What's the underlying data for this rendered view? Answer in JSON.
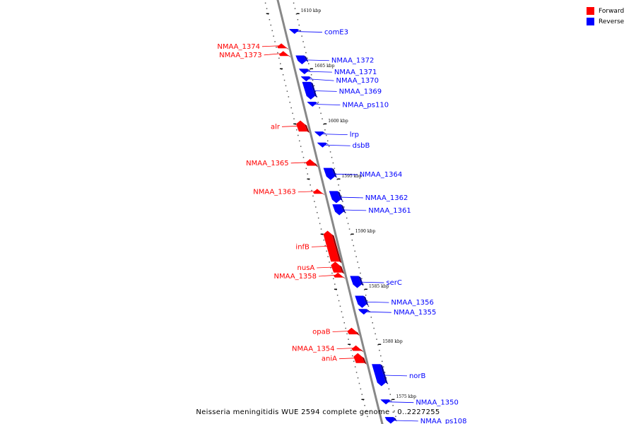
{
  "legend": [
    {
      "label": "Forward",
      "color": "#ff0000"
    },
    {
      "label": "Reverse",
      "color": "#0000ff"
    }
  ],
  "caption": "Neisseria meningitidis WUE 2594 complete genome - 0..2227255",
  "colors": {
    "forward": "#ff0000",
    "reverse": "#0000ff",
    "axis": "#888888"
  },
  "axis": {
    "units": "kbp",
    "start_kbp": 1612,
    "end_kbp": 1572
  },
  "ticks": [
    {
      "kbp": 1610,
      "label": "1610 kbp"
    },
    {
      "kbp": 1605,
      "label": "1605 kbp"
    },
    {
      "kbp": 1600,
      "label": "1600 kbp"
    },
    {
      "kbp": 1595,
      "label": "1595 kbp"
    },
    {
      "kbp": 1590,
      "label": "1590 kbp"
    },
    {
      "kbp": 1585,
      "label": "1585 kbp"
    },
    {
      "kbp": 1580,
      "label": "1580 kbp"
    },
    {
      "kbp": 1575,
      "label": "1575 kbp"
    }
  ],
  "genes": [
    {
      "name": "comE3",
      "strand": "reverse",
      "from_kbp": 1608.6,
      "to_kbp": 1608.3
    },
    {
      "name": "NMAA_1374",
      "strand": "forward",
      "from_kbp": 1607.3,
      "to_kbp": 1606.9
    },
    {
      "name": "NMAA_1373",
      "strand": "forward",
      "from_kbp": 1606.6,
      "to_kbp": 1606.2
    },
    {
      "name": "NMAA_1372",
      "strand": "reverse",
      "from_kbp": 1606.2,
      "to_kbp": 1605.4
    },
    {
      "name": "NMAA_1371",
      "strand": "reverse",
      "from_kbp": 1605.0,
      "to_kbp": 1604.5
    },
    {
      "name": "NMAA_1370",
      "strand": "reverse",
      "from_kbp": 1604.3,
      "to_kbp": 1603.9
    },
    {
      "name": "NMAA_1369",
      "strand": "reverse",
      "from_kbp": 1603.8,
      "to_kbp": 1602.2
    },
    {
      "name": "NMAA_ps110",
      "strand": "reverse",
      "from_kbp": 1602.0,
      "to_kbp": 1601.6
    },
    {
      "name": "alr",
      "strand": "forward",
      "from_kbp": 1600.3,
      "to_kbp": 1599.3
    },
    {
      "name": "lrp",
      "strand": "reverse",
      "from_kbp": 1599.3,
      "to_kbp": 1598.9
    },
    {
      "name": "dsbB",
      "strand": "reverse",
      "from_kbp": 1598.3,
      "to_kbp": 1597.9
    },
    {
      "name": "NMAA_1365",
      "strand": "forward",
      "from_kbp": 1596.8,
      "to_kbp": 1596.2
    },
    {
      "name": "NMAA_1364",
      "strand": "reverse",
      "from_kbp": 1596.0,
      "to_kbp": 1594.9
    },
    {
      "name": "NMAA_1363",
      "strand": "forward",
      "from_kbp": 1594.1,
      "to_kbp": 1593.7
    },
    {
      "name": "NMAA_1362",
      "strand": "reverse",
      "from_kbp": 1593.9,
      "to_kbp": 1592.8
    },
    {
      "name": "NMAA_1361",
      "strand": "reverse",
      "from_kbp": 1592.7,
      "to_kbp": 1591.7
    },
    {
      "name": "infB",
      "strand": "forward",
      "from_kbp": 1590.3,
      "to_kbp": 1587.5
    },
    {
      "name": "nusA",
      "strand": "forward",
      "from_kbp": 1587.5,
      "to_kbp": 1586.5
    },
    {
      "name": "NMAA_1358",
      "strand": "forward",
      "from_kbp": 1586.5,
      "to_kbp": 1586.1
    },
    {
      "name": "serC",
      "strand": "reverse",
      "from_kbp": 1586.2,
      "to_kbp": 1585.1
    },
    {
      "name": "NMAA_1356",
      "strand": "reverse",
      "from_kbp": 1584.4,
      "to_kbp": 1583.3
    },
    {
      "name": "NMAA_1355",
      "strand": "reverse",
      "from_kbp": 1583.2,
      "to_kbp": 1582.7
    },
    {
      "name": "opaB",
      "strand": "forward",
      "from_kbp": 1581.5,
      "to_kbp": 1580.9
    },
    {
      "name": "NMAA_1354",
      "strand": "forward",
      "from_kbp": 1579.9,
      "to_kbp": 1579.4
    },
    {
      "name": "aniA",
      "strand": "forward",
      "from_kbp": 1579.2,
      "to_kbp": 1578.3
    },
    {
      "name": "norB",
      "strand": "reverse",
      "from_kbp": 1578.2,
      "to_kbp": 1576.2
    },
    {
      "name": "NMAA_1350",
      "strand": "reverse",
      "from_kbp": 1575.0,
      "to_kbp": 1574.6
    },
    {
      "name": "NMAA_ps108",
      "strand": "reverse",
      "from_kbp": 1573.4,
      "to_kbp": 1572.8
    }
  ]
}
